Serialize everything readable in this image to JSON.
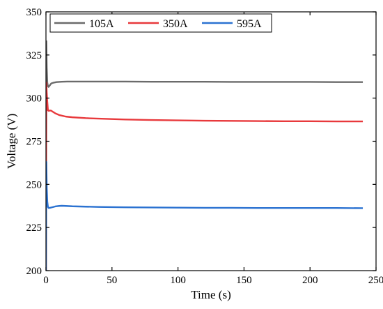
{
  "chart_data": {
    "type": "line",
    "title": "",
    "xlabel": "Time (s)",
    "ylabel": "Voltage (V)",
    "xlim": [
      0,
      250
    ],
    "ylim": [
      200,
      350
    ],
    "xticks": [
      0,
      50,
      100,
      150,
      200,
      250
    ],
    "yticks": [
      200,
      225,
      250,
      275,
      300,
      325,
      350
    ],
    "x_tick_labels": [
      "0",
      "50",
      "100",
      "150",
      "200",
      "250"
    ],
    "y_tick_labels": [
      "200",
      "225",
      "250",
      "275",
      "300",
      "325",
      "350"
    ],
    "grid": false,
    "legend": {
      "placement": "top-left",
      "orientation": "horizontal"
    },
    "series": [
      {
        "name": "105A",
        "color": "#6b6b6b",
        "x": [
          0,
          0.3,
          0.6,
          1,
          1.5,
          2,
          3,
          4,
          6,
          8,
          12,
          16,
          20,
          30,
          40,
          60,
          80,
          100,
          120,
          140,
          160,
          180,
          200,
          220,
          240
        ],
        "y": [
          200,
          333,
          318,
          309,
          307,
          306.5,
          307.5,
          308.5,
          309,
          309.3,
          309.5,
          309.6,
          309.6,
          309.6,
          309.6,
          309.6,
          309.5,
          309.5,
          309.5,
          309.4,
          309.4,
          309.4,
          309.4,
          309.3,
          309.3
        ]
      },
      {
        "name": "350A",
        "color": "#e8393c",
        "x": [
          0,
          0.3,
          0.6,
          1,
          1.5,
          2,
          3,
          4,
          5,
          7,
          10,
          15,
          20,
          30,
          40,
          60,
          80,
          100,
          120,
          140,
          160,
          180,
          200,
          220,
          240
        ],
        "y": [
          200,
          309,
          303,
          298,
          293,
          292.6,
          292.8,
          292.7,
          292.2,
          291.2,
          290.2,
          289.3,
          288.9,
          288.4,
          288.1,
          287.6,
          287.3,
          287.1,
          286.9,
          286.8,
          286.7,
          286.6,
          286.6,
          286.5,
          286.5
        ]
      },
      {
        "name": "595A",
        "color": "#2b72d1",
        "x": [
          0,
          0.3,
          0.6,
          1,
          1.5,
          2,
          3,
          5,
          7,
          10,
          12,
          15,
          20,
          30,
          40,
          60,
          80,
          100,
          120,
          140,
          160,
          180,
          200,
          220,
          240
        ],
        "y": [
          200,
          263,
          248,
          240,
          237,
          236.3,
          236.4,
          236.8,
          237.2,
          237.5,
          237.6,
          237.5,
          237.3,
          237.1,
          236.9,
          236.7,
          236.6,
          236.5,
          236.4,
          236.4,
          236.3,
          236.3,
          236.3,
          236.3,
          236.2
        ]
      }
    ]
  }
}
